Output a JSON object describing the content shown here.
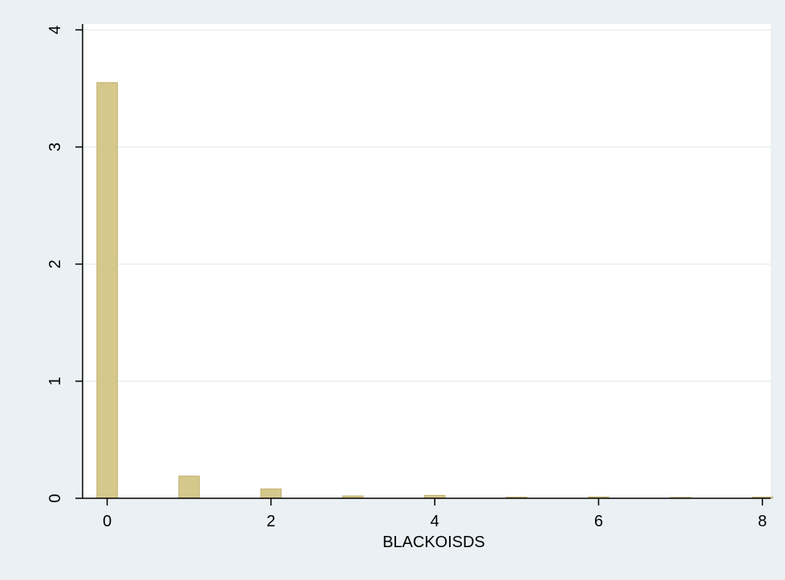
{
  "chart_data": {
    "type": "bar",
    "xlabel": "BLACKOISDS",
    "ylabel": "",
    "xlim": [
      -0.3,
      8.1
    ],
    "ylim": [
      0,
      4.05
    ],
    "x_ticks": [
      0,
      2,
      4,
      6,
      8
    ],
    "y_ticks": [
      0,
      1,
      2,
      3,
      4
    ],
    "grid": true,
    "bar_width": 0.25,
    "x": [
      0,
      1,
      2,
      3,
      4,
      5,
      6,
      7,
      8
    ],
    "values": [
      3.55,
      0.19,
      0.08,
      0.02,
      0.025,
      0.01,
      0.012,
      0.008,
      0.01
    ],
    "colors": {
      "background": "#eaf0f3",
      "plot_area": "#ffffff",
      "bar_fill": "#d6c88a",
      "bar_stroke": "#bfae6c",
      "grid": "#e6eef2",
      "axis": "#000000"
    }
  }
}
